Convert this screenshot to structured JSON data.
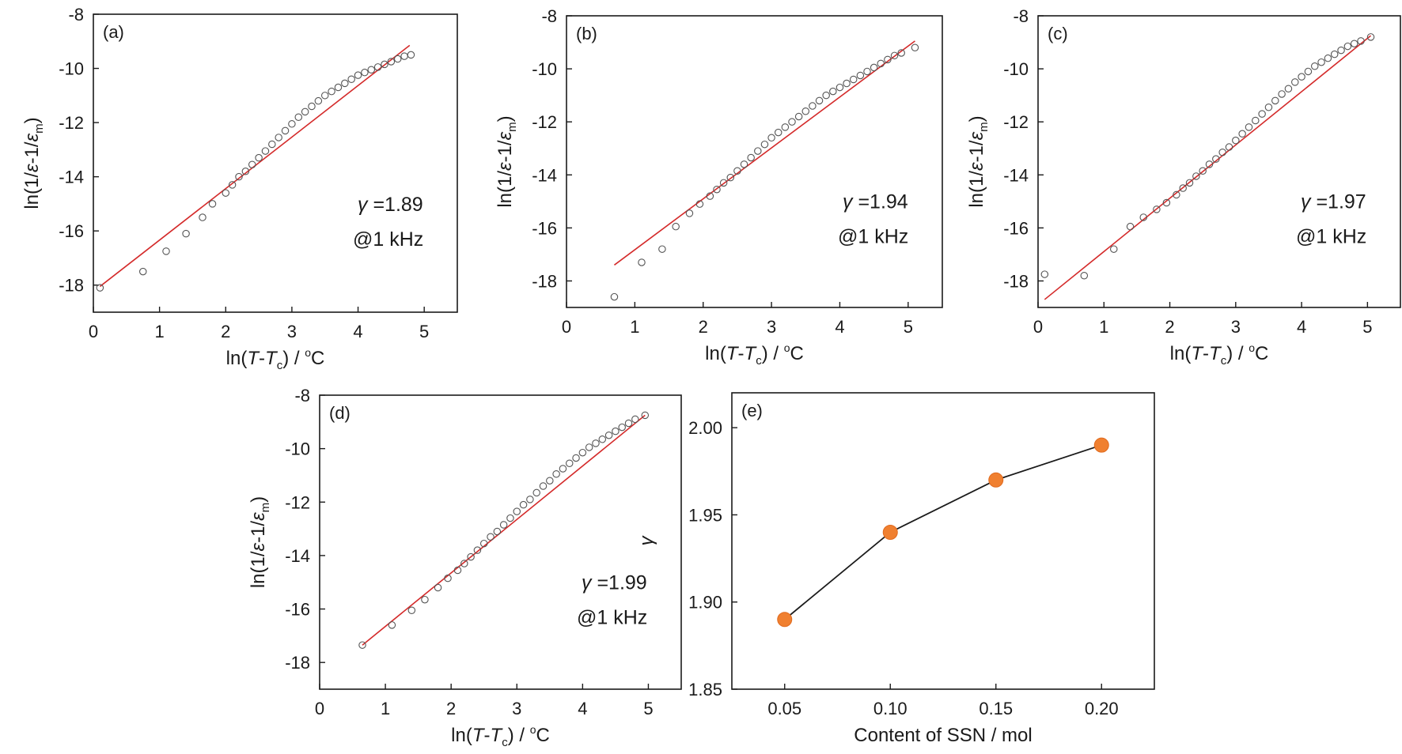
{
  "chart_data": [
    {
      "panel": "(a)",
      "type": "scatter",
      "xlabel": "ln(T-Tc) / °C",
      "ylabel": "ln(1/ε-1/εm)",
      "xlim": [
        0,
        5.5
      ],
      "ylim": [
        -19,
        -8
      ],
      "xticks": [
        0,
        1,
        2,
        3,
        4,
        5
      ],
      "yticks": [
        -8,
        -10,
        -12,
        -14,
        -16,
        -18
      ],
      "annotation": {
        "gamma": "γ =1.89",
        "freq": "@1 kHz"
      },
      "points": {
        "x": [
          0.1,
          0.75,
          1.1,
          1.4,
          1.65,
          1.8,
          2.0,
          2.1,
          2.2,
          2.3,
          2.4,
          2.5,
          2.6,
          2.7,
          2.8,
          2.9,
          3.0,
          3.1,
          3.2,
          3.3,
          3.4,
          3.5,
          3.6,
          3.7,
          3.8,
          3.9,
          4.0,
          4.1,
          4.2,
          4.3,
          4.4,
          4.5,
          4.6,
          4.7,
          4.8
        ],
        "y": [
          -18.1,
          -17.5,
          -16.75,
          -16.1,
          -15.5,
          -15.0,
          -14.6,
          -14.3,
          -14.0,
          -13.8,
          -13.55,
          -13.3,
          -13.05,
          -12.8,
          -12.55,
          -12.3,
          -12.05,
          -11.8,
          -11.6,
          -11.4,
          -11.2,
          -11.0,
          -10.85,
          -10.7,
          -10.55,
          -10.4,
          -10.25,
          -10.15,
          -10.05,
          -9.95,
          -9.85,
          -9.75,
          -9.65,
          -9.55,
          -9.5
        ]
      },
      "fit": {
        "x": [
          0.1,
          4.78
        ],
        "y": [
          -18.05,
          -9.15
        ]
      }
    },
    {
      "panel": "(b)",
      "type": "scatter",
      "xlabel": "ln(T-Tc) / °C",
      "ylabel": "ln(1/ε-1/εm)",
      "xlim": [
        0,
        5.5
      ],
      "ylim": [
        -19,
        -8
      ],
      "xticks": [
        0,
        1,
        2,
        3,
        4,
        5
      ],
      "yticks": [
        -8,
        -10,
        -12,
        -14,
        -16,
        -18
      ],
      "annotation": {
        "gamma": "γ =1.94",
        "freq": "@1 kHz"
      },
      "points": {
        "x": [
          0.7,
          1.1,
          1.4,
          1.6,
          1.8,
          1.95,
          2.1,
          2.2,
          2.3,
          2.4,
          2.5,
          2.6,
          2.7,
          2.8,
          2.9,
          3.0,
          3.1,
          3.2,
          3.3,
          3.4,
          3.5,
          3.6,
          3.7,
          3.8,
          3.9,
          4.0,
          4.1,
          4.2,
          4.3,
          4.4,
          4.5,
          4.6,
          4.7,
          4.8,
          4.9,
          5.1
        ],
        "y": [
          -18.6,
          -17.3,
          -16.8,
          -15.95,
          -15.45,
          -15.1,
          -14.8,
          -14.55,
          -14.3,
          -14.1,
          -13.85,
          -13.6,
          -13.35,
          -13.1,
          -12.85,
          -12.6,
          -12.4,
          -12.2,
          -12.0,
          -11.8,
          -11.6,
          -11.4,
          -11.2,
          -11.0,
          -10.85,
          -10.7,
          -10.55,
          -10.4,
          -10.25,
          -10.1,
          -9.95,
          -9.8,
          -9.65,
          -9.5,
          -9.4,
          -9.2
        ]
      },
      "fit": {
        "x": [
          0.7,
          5.1
        ],
        "y": [
          -17.4,
          -8.95
        ]
      }
    },
    {
      "panel": "(c)",
      "type": "scatter",
      "xlabel": "ln(T-Tc) / °C",
      "ylabel": "ln(1/ε-1/εm)",
      "xlim": [
        0,
        5.5
      ],
      "ylim": [
        -19,
        -8
      ],
      "xticks": [
        0,
        1,
        2,
        3,
        4,
        5
      ],
      "yticks": [
        -8,
        -10,
        -12,
        -14,
        -16,
        -18
      ],
      "annotation": {
        "gamma": "γ =1.97",
        "freq": "@1 kHz"
      },
      "points": {
        "x": [
          0.1,
          0.7,
          1.15,
          1.4,
          1.6,
          1.8,
          1.95,
          2.1,
          2.2,
          2.3,
          2.4,
          2.5,
          2.6,
          2.7,
          2.8,
          2.9,
          3.0,
          3.1,
          3.2,
          3.3,
          3.4,
          3.5,
          3.6,
          3.7,
          3.8,
          3.9,
          4.0,
          4.1,
          4.2,
          4.3,
          4.4,
          4.5,
          4.6,
          4.7,
          4.8,
          4.9,
          5.05
        ],
        "y": [
          -17.75,
          -17.8,
          -16.8,
          -15.95,
          -15.6,
          -15.3,
          -15.05,
          -14.75,
          -14.5,
          -14.3,
          -14.05,
          -13.85,
          -13.6,
          -13.4,
          -13.15,
          -12.95,
          -12.7,
          -12.45,
          -12.2,
          -11.95,
          -11.7,
          -11.45,
          -11.2,
          -10.95,
          -10.75,
          -10.5,
          -10.3,
          -10.1,
          -9.9,
          -9.75,
          -9.6,
          -9.45,
          -9.3,
          -9.15,
          -9.05,
          -8.95,
          -8.8
        ]
      },
      "fit": {
        "x": [
          0.1,
          5.05
        ],
        "y": [
          -18.7,
          -8.75
        ]
      }
    },
    {
      "panel": "(d)",
      "type": "scatter",
      "xlabel": "ln(T-Tc) / °C",
      "ylabel": "ln(1/ε-1/εm)",
      "xlim": [
        0,
        5.5
      ],
      "ylim": [
        -19,
        -8
      ],
      "xticks": [
        0,
        1,
        2,
        3,
        4,
        5
      ],
      "yticks": [
        -8,
        -10,
        -12,
        -14,
        -16,
        -18
      ],
      "annotation": {
        "gamma": "γ =1.99",
        "freq": "@1 kHz"
      },
      "points": {
        "x": [
          0.65,
          1.1,
          1.4,
          1.6,
          1.8,
          1.95,
          2.1,
          2.2,
          2.3,
          2.4,
          2.5,
          2.6,
          2.7,
          2.8,
          2.9,
          3.0,
          3.1,
          3.2,
          3.3,
          3.4,
          3.5,
          3.6,
          3.7,
          3.8,
          3.9,
          4.0,
          4.1,
          4.2,
          4.3,
          4.4,
          4.5,
          4.6,
          4.7,
          4.8,
          4.95
        ],
        "y": [
          -17.35,
          -16.6,
          -16.05,
          -15.65,
          -15.2,
          -14.85,
          -14.55,
          -14.3,
          -14.05,
          -13.8,
          -13.55,
          -13.3,
          -13.1,
          -12.85,
          -12.6,
          -12.35,
          -12.1,
          -11.9,
          -11.65,
          -11.4,
          -11.2,
          -10.95,
          -10.75,
          -10.55,
          -10.35,
          -10.15,
          -9.95,
          -9.8,
          -9.65,
          -9.5,
          -9.35,
          -9.2,
          -9.05,
          -8.9,
          -8.75
        ]
      },
      "fit": {
        "x": [
          0.65,
          4.95
        ],
        "y": [
          -17.35,
          -8.75
        ]
      }
    },
    {
      "panel": "(e)",
      "type": "line",
      "xlabel": "Content of SSN / mol",
      "ylabel": "γ",
      "xlim": [
        0.025,
        0.225
      ],
      "ylim": [
        1.85,
        2.02
      ],
      "xticks": [
        0.05,
        0.1,
        0.15,
        0.2
      ],
      "xtick_labels": [
        "0.05",
        "0.10",
        "0.15",
        "0.20"
      ],
      "yticks": [
        1.85,
        1.9,
        1.95,
        2.0
      ],
      "ytick_labels": [
        "1.85",
        "1.90",
        "1.95",
        "2.00"
      ],
      "x": [
        0.05,
        0.1,
        0.15,
        0.2
      ],
      "y": [
        1.89,
        1.94,
        1.97,
        1.99
      ],
      "colors": {
        "marker": "#f08030",
        "line": "#1a1a1a"
      }
    }
  ]
}
